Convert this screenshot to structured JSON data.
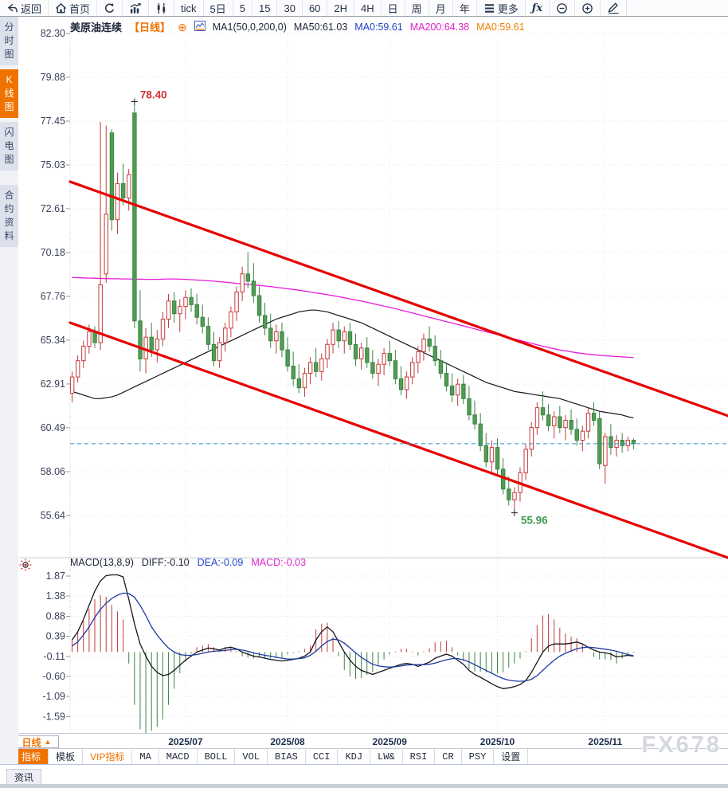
{
  "toolbar": {
    "items": [
      {
        "name": "back",
        "icon": "back-arrow",
        "label": "返回"
      },
      {
        "name": "home",
        "icon": "home",
        "label": "首页"
      },
      {
        "name": "refresh",
        "icon": "refresh"
      },
      {
        "name": "trend-chart",
        "icon": "bar-chart"
      },
      {
        "name": "candlestick",
        "icon": "candles"
      },
      {
        "name": "tick",
        "label": "tick"
      },
      {
        "name": "5d",
        "label": "5日"
      },
      {
        "name": "5m",
        "label": "5"
      },
      {
        "name": "15m",
        "label": "15"
      },
      {
        "name": "30m",
        "label": "30"
      },
      {
        "name": "60m",
        "label": "60"
      },
      {
        "name": "2h",
        "label": "2H"
      },
      {
        "name": "4h",
        "label": "4H"
      },
      {
        "name": "day",
        "label": "日"
      },
      {
        "name": "week",
        "label": "周"
      },
      {
        "name": "month",
        "label": "月"
      },
      {
        "name": "year",
        "label": "年"
      },
      {
        "name": "more",
        "icon": "menu",
        "label": "更多"
      },
      {
        "name": "formula",
        "icon": "fx"
      },
      {
        "name": "zoom-out",
        "icon": "zoom-out"
      },
      {
        "name": "zoom-in",
        "icon": "zoom-in"
      },
      {
        "name": "draw",
        "icon": "pencil"
      }
    ]
  },
  "sidebar": {
    "tabs": [
      {
        "label": "分时图",
        "active": false,
        "gap": false
      },
      {
        "label": "K线图",
        "active": true,
        "gap": false
      },
      {
        "label": "闪电图",
        "active": false,
        "gap": false
      },
      {
        "label": "合约资料",
        "active": false,
        "gap": true
      }
    ]
  },
  "glyphs": {
    "circle_plus": "⊕",
    "fx": "ƒx"
  },
  "chart_header": {
    "symbol": "美原油连续",
    "period": "【日线】",
    "ma_settings": "MA1(50,0,200,0)",
    "ma50": "MA50:61.03",
    "ma0_blue": "MA0:59.61",
    "ma200": "MA200:64.38",
    "ma0_orange": "MA0:59.61"
  },
  "macd_header": {
    "title": "MACD(13,8,9)",
    "diff": "DIFF:-0.10",
    "dea": "DEA:-0.09",
    "macd": "MACD:-0.03"
  },
  "period_box": {
    "label": "日线",
    "arrow": "▲"
  },
  "indicator_toolbar": {
    "tabs": [
      {
        "label": "指标",
        "active": true
      },
      {
        "label": "模板"
      },
      {
        "label": "VIP指标",
        "vip": true
      },
      {
        "label": "MA",
        "en": true
      },
      {
        "label": "MACD",
        "en": true
      },
      {
        "label": "BOLL",
        "en": true
      },
      {
        "label": "VOL",
        "en": true
      },
      {
        "label": "BIAS",
        "en": true
      },
      {
        "label": "CCI",
        "en": true
      },
      {
        "label": "KDJ",
        "en": true
      },
      {
        "label": "LW&",
        "en": true
      },
      {
        "label": "RSI",
        "en": true
      },
      {
        "label": "CR",
        "en": true
      },
      {
        "label": "PSY",
        "en": true
      },
      {
        "label": "设置"
      }
    ]
  },
  "status_bar": {
    "tab": "资讯"
  },
  "watermark": "FX678",
  "colors": {
    "accent_orange": "#f07300",
    "up_red": "#c23a3a",
    "down_green_fill": "#4f9e53",
    "down_green_stroke": "#3c8344",
    "trendline_red": "#e60000",
    "ma50_black": "#15151d",
    "ma200_magenta": "#e61ada",
    "diff_black": "#15151d",
    "dea_blue": "#1e3aa0",
    "current_price_blue": "#2f8fd0",
    "grid": "#e2e2ec",
    "axis_text": "#3a4258"
  },
  "chart_data": {
    "main": {
      "type": "candlestick",
      "title": "美原油连续 日线",
      "y_ticks": [
        82.3,
        79.88,
        77.45,
        75.03,
        72.61,
        70.18,
        67.76,
        65.34,
        62.91,
        60.49,
        58.06,
        55.64
      ],
      "x_labels": [
        "2025/07",
        "2025/08",
        "2025/09",
        "2025/10",
        "2025/11"
      ],
      "x_label_indices": [
        20,
        38,
        56,
        75,
        94
      ],
      "high_label": "78.40",
      "low_label": "55.96",
      "last_price": 59.61,
      "trendlines": [
        {
          "p1": 74.1,
          "p2": 61.15
        },
        {
          "p1": 66.3,
          "p2": 53.3
        }
      ],
      "candles": [
        [
          62.4,
          63.6,
          61.9,
          63.3
        ],
        [
          63.3,
          64.5,
          63.0,
          64.2
        ],
        [
          64.2,
          65.3,
          63.8,
          65.0
        ],
        [
          65.0,
          66.2,
          64.6,
          65.8
        ],
        [
          65.8,
          66.1,
          64.9,
          65.2
        ],
        [
          65.2,
          77.4,
          64.8,
          68.4
        ],
        [
          69.0,
          77.2,
          68.5,
          72.3
        ],
        [
          76.8,
          77.0,
          71.4,
          72.0
        ],
        [
          72.0,
          74.6,
          71.2,
          74.0
        ],
        [
          74.0,
          75.1,
          72.8,
          73.2
        ],
        [
          73.2,
          74.8,
          72.5,
          74.5
        ],
        [
          77.9,
          78.4,
          66.0,
          66.4
        ],
        [
          66.4,
          68.1,
          63.6,
          64.3
        ],
        [
          64.3,
          66.0,
          63.5,
          65.5
        ],
        [
          65.5,
          66.3,
          64.4,
          64.8
        ],
        [
          64.8,
          65.9,
          64.1,
          65.4
        ],
        [
          65.4,
          66.9,
          65.0,
          66.5
        ],
        [
          66.5,
          67.9,
          66.0,
          67.5
        ],
        [
          67.5,
          68.0,
          66.3,
          66.8
        ],
        [
          66.8,
          67.6,
          65.8,
          67.2
        ],
        [
          67.2,
          68.1,
          66.5,
          67.7
        ],
        [
          67.7,
          68.2,
          66.9,
          67.3
        ],
        [
          67.3,
          67.9,
          66.2,
          66.6
        ],
        [
          66.6,
          67.3,
          65.7,
          66.1
        ],
        [
          66.1,
          66.6,
          64.8,
          65.1
        ],
        [
          65.1,
          65.8,
          63.9,
          64.2
        ],
        [
          64.2,
          65.5,
          63.8,
          65.2
        ],
        [
          65.2,
          66.3,
          64.7,
          66.0
        ],
        [
          66.0,
          67.2,
          65.5,
          66.9
        ],
        [
          66.9,
          68.3,
          66.4,
          68.0
        ],
        [
          68.0,
          69.4,
          67.5,
          69.0
        ],
        [
          69.0,
          70.2,
          68.2,
          68.6
        ],
        [
          68.6,
          69.6,
          67.4,
          67.8
        ],
        [
          67.8,
          68.3,
          66.3,
          66.7
        ],
        [
          66.7,
          67.4,
          65.6,
          66.0
        ],
        [
          66.0,
          66.8,
          64.9,
          65.3
        ],
        [
          65.3,
          66.2,
          64.6,
          65.8
        ],
        [
          65.8,
          66.3,
          64.4,
          64.8
        ],
        [
          64.8,
          65.5,
          63.6,
          63.9
        ],
        [
          63.9,
          64.7,
          62.8,
          63.2
        ],
        [
          63.2,
          64.0,
          62.4,
          62.7
        ],
        [
          62.7,
          63.8,
          62.2,
          63.5
        ],
        [
          63.5,
          64.4,
          62.9,
          64.1
        ],
        [
          64.1,
          64.9,
          63.3,
          63.6
        ],
        [
          63.6,
          64.6,
          63.1,
          64.3
        ],
        [
          64.3,
          65.4,
          63.8,
          65.1
        ],
        [
          65.1,
          66.3,
          64.6,
          65.9
        ],
        [
          65.9,
          66.4,
          64.9,
          65.3
        ],
        [
          65.3,
          66.1,
          64.6,
          65.8
        ],
        [
          65.8,
          66.3,
          64.8,
          65.1
        ],
        [
          65.1,
          65.7,
          63.9,
          64.3
        ],
        [
          64.3,
          65.2,
          63.7,
          64.9
        ],
        [
          64.9,
          65.5,
          63.8,
          64.1
        ],
        [
          64.1,
          64.8,
          63.2,
          63.5
        ],
        [
          63.5,
          64.3,
          62.8,
          64.0
        ],
        [
          64.0,
          64.9,
          63.4,
          64.6
        ],
        [
          64.6,
          65.3,
          63.9,
          64.2
        ],
        [
          64.2,
          64.8,
          62.9,
          63.2
        ],
        [
          63.2,
          63.9,
          62.3,
          62.6
        ],
        [
          62.6,
          63.6,
          62.1,
          63.3
        ],
        [
          63.3,
          64.4,
          62.9,
          64.1
        ],
        [
          64.1,
          65.0,
          63.5,
          64.7
        ],
        [
          64.7,
          65.7,
          64.2,
          65.4
        ],
        [
          65.4,
          66.1,
          64.7,
          65.0
        ],
        [
          65.0,
          65.6,
          63.9,
          64.2
        ],
        [
          64.2,
          64.8,
          63.2,
          63.5
        ],
        [
          63.5,
          64.1,
          62.5,
          62.8
        ],
        [
          62.8,
          63.5,
          61.9,
          62.3
        ],
        [
          62.3,
          63.2,
          61.7,
          62.9
        ],
        [
          62.9,
          63.4,
          61.8,
          62.1
        ],
        [
          62.1,
          62.8,
          60.9,
          61.2
        ],
        [
          61.2,
          62.0,
          60.4,
          60.7
        ],
        [
          60.7,
          61.3,
          59.2,
          59.5
        ],
        [
          59.5,
          60.2,
          58.3,
          58.6
        ],
        [
          58.6,
          59.8,
          58.0,
          59.4
        ],
        [
          59.4,
          59.9,
          57.9,
          58.2
        ],
        [
          58.2,
          58.8,
          56.8,
          57.1
        ],
        [
          57.1,
          57.8,
          56.2,
          56.5
        ],
        [
          56.5,
          57.2,
          55.96,
          56.9
        ],
        [
          56.9,
          58.3,
          56.4,
          58.0
        ],
        [
          58.0,
          59.6,
          57.6,
          59.3
        ],
        [
          59.3,
          60.8,
          58.9,
          60.5
        ],
        [
          60.5,
          61.9,
          60.1,
          61.6
        ],
        [
          61.6,
          62.5,
          60.9,
          61.2
        ],
        [
          61.2,
          61.8,
          60.3,
          60.6
        ],
        [
          60.6,
          61.4,
          59.9,
          61.1
        ],
        [
          61.1,
          61.7,
          60.2,
          60.5
        ],
        [
          60.5,
          61.2,
          59.8,
          60.9
        ],
        [
          60.9,
          61.5,
          60.1,
          60.4
        ],
        [
          60.4,
          61.0,
          59.5,
          59.8
        ],
        [
          59.8,
          60.6,
          59.2,
          60.3
        ],
        [
          60.3,
          61.6,
          59.9,
          61.3
        ],
        [
          61.3,
          61.9,
          60.6,
          60.9
        ],
        [
          61.0,
          61.4,
          58.2,
          58.5
        ],
        [
          58.4,
          60.2,
          57.4,
          60.0
        ],
        [
          60.0,
          60.7,
          59.0,
          59.4
        ],
        [
          59.4,
          60.1,
          58.9,
          59.8
        ],
        [
          59.8,
          60.2,
          59.1,
          59.5
        ],
        [
          59.5,
          60.0,
          59.2,
          59.8
        ],
        [
          59.8,
          59.9,
          59.3,
          59.61
        ]
      ],
      "ma50": [
        62.5,
        62.4,
        62.3,
        62.2,
        62.1,
        62.1,
        62.15,
        62.2,
        62.3,
        62.45,
        62.6,
        62.75,
        62.9,
        63.05,
        63.2,
        63.35,
        63.5,
        63.65,
        63.8,
        63.95,
        64.1,
        64.25,
        64.4,
        64.55,
        64.7,
        64.85,
        65.0,
        65.15,
        65.3,
        65.45,
        65.6,
        65.75,
        65.9,
        66.05,
        66.2,
        66.35,
        66.5,
        66.6,
        66.7,
        66.8,
        66.9,
        66.95,
        67.0,
        67.0,
        66.95,
        66.9,
        66.8,
        66.7,
        66.6,
        66.5,
        66.4,
        66.3,
        66.15,
        66.0,
        65.85,
        65.7,
        65.55,
        65.4,
        65.25,
        65.1,
        64.95,
        64.8,
        64.65,
        64.5,
        64.35,
        64.2,
        64.05,
        63.9,
        63.75,
        63.6,
        63.45,
        63.3,
        63.15,
        63.0,
        62.9,
        62.8,
        62.7,
        62.6,
        62.5,
        62.45,
        62.4,
        62.35,
        62.3,
        62.25,
        62.2,
        62.15,
        62.1,
        62.0,
        61.9,
        61.8,
        61.7,
        61.6,
        61.5,
        61.4,
        61.35,
        61.3,
        61.25,
        61.2,
        61.1,
        61.03
      ],
      "ma200": [
        68.8,
        68.79,
        68.78,
        68.77,
        68.76,
        68.75,
        68.74,
        68.73,
        68.73,
        68.72,
        68.72,
        68.71,
        68.71,
        68.7,
        68.7,
        68.7,
        68.71,
        68.72,
        68.72,
        68.71,
        68.7,
        68.68,
        68.66,
        68.64,
        68.62,
        68.6,
        68.57,
        68.54,
        68.51,
        68.48,
        68.45,
        68.42,
        68.39,
        68.36,
        68.33,
        68.3,
        68.26,
        68.22,
        68.18,
        68.14,
        68.1,
        68.05,
        68.0,
        67.95,
        67.9,
        67.85,
        67.8,
        67.74,
        67.68,
        67.62,
        67.56,
        67.5,
        67.43,
        67.36,
        67.29,
        67.22,
        67.15,
        67.08,
        67.0,
        66.92,
        66.84,
        66.76,
        66.68,
        66.6,
        66.52,
        66.44,
        66.36,
        66.28,
        66.2,
        66.12,
        66.04,
        65.96,
        65.88,
        65.8,
        65.72,
        65.64,
        65.56,
        65.48,
        65.4,
        65.32,
        65.24,
        65.16,
        65.08,
        65.0,
        64.93,
        64.86,
        64.8,
        64.74,
        64.69,
        64.64,
        64.6,
        64.56,
        64.53,
        64.5,
        64.47,
        64.45,
        64.43,
        64.41,
        64.39,
        64.38
      ]
    },
    "macd": {
      "type": "macd",
      "params": "13,8,9",
      "y_ticks": [
        1.87,
        1.38,
        0.88,
        0.39,
        -0.11,
        -0.6,
        -1.09,
        -1.59
      ],
      "diff": [
        0.3,
        0.5,
        0.8,
        1.15,
        1.5,
        1.75,
        1.88,
        1.9,
        1.9,
        1.85,
        1.3,
        0.7,
        0.2,
        -0.1,
        -0.35,
        -0.5,
        -0.58,
        -0.55,
        -0.45,
        -0.32,
        -0.2,
        -0.1,
        0.0,
        0.05,
        0.1,
        0.08,
        0.05,
        0.1,
        0.12,
        0.08,
        0.0,
        -0.05,
        -0.1,
        -0.12,
        -0.15,
        -0.18,
        -0.2,
        -0.22,
        -0.2,
        -0.18,
        -0.15,
        -0.1,
        0.0,
        0.3,
        0.5,
        0.62,
        0.5,
        0.25,
        0.0,
        -0.2,
        -0.35,
        -0.45,
        -0.5,
        -0.55,
        -0.5,
        -0.45,
        -0.4,
        -0.35,
        -0.3,
        -0.28,
        -0.3,
        -0.35,
        -0.3,
        -0.25,
        -0.15,
        -0.1,
        -0.05,
        -0.1,
        -0.2,
        -0.3,
        -0.45,
        -0.55,
        -0.62,
        -0.7,
        -0.78,
        -0.85,
        -0.9,
        -0.88,
        -0.85,
        -0.8,
        -0.7,
        -0.5,
        -0.25,
        0.0,
        0.15,
        0.2,
        0.2,
        0.2,
        0.22,
        0.25,
        0.2,
        0.12,
        0.05,
        0.0,
        -0.02,
        -0.05,
        -0.12,
        -0.1,
        -0.08,
        -0.1
      ],
      "dea": [
        0.15,
        0.25,
        0.42,
        0.62,
        0.85,
        1.05,
        1.2,
        1.32,
        1.4,
        1.45,
        1.44,
        1.35,
        1.15,
        0.9,
        0.62,
        0.42,
        0.25,
        0.1,
        0.0,
        -0.06,
        -0.08,
        -0.08,
        -0.06,
        -0.03,
        0.0,
        0.02,
        0.03,
        0.04,
        0.06,
        0.07,
        0.05,
        0.02,
        -0.02,
        -0.05,
        -0.08,
        -0.1,
        -0.13,
        -0.15,
        -0.17,
        -0.17,
        -0.16,
        -0.14,
        -0.08,
        0.02,
        0.15,
        0.26,
        0.32,
        0.3,
        0.22,
        0.1,
        -0.02,
        -0.13,
        -0.22,
        -0.3,
        -0.34,
        -0.36,
        -0.37,
        -0.36,
        -0.34,
        -0.32,
        -0.31,
        -0.31,
        -0.31,
        -0.3,
        -0.27,
        -0.23,
        -0.19,
        -0.16,
        -0.16,
        -0.19,
        -0.24,
        -0.31,
        -0.38,
        -0.45,
        -0.52,
        -0.59,
        -0.65,
        -0.69,
        -0.71,
        -0.72,
        -0.71,
        -0.67,
        -0.58,
        -0.45,
        -0.32,
        -0.2,
        -0.1,
        -0.03,
        0.03,
        0.08,
        0.11,
        0.12,
        0.11,
        0.09,
        0.07,
        0.05,
        0.02,
        -0.02,
        -0.06,
        -0.09
      ]
    }
  }
}
